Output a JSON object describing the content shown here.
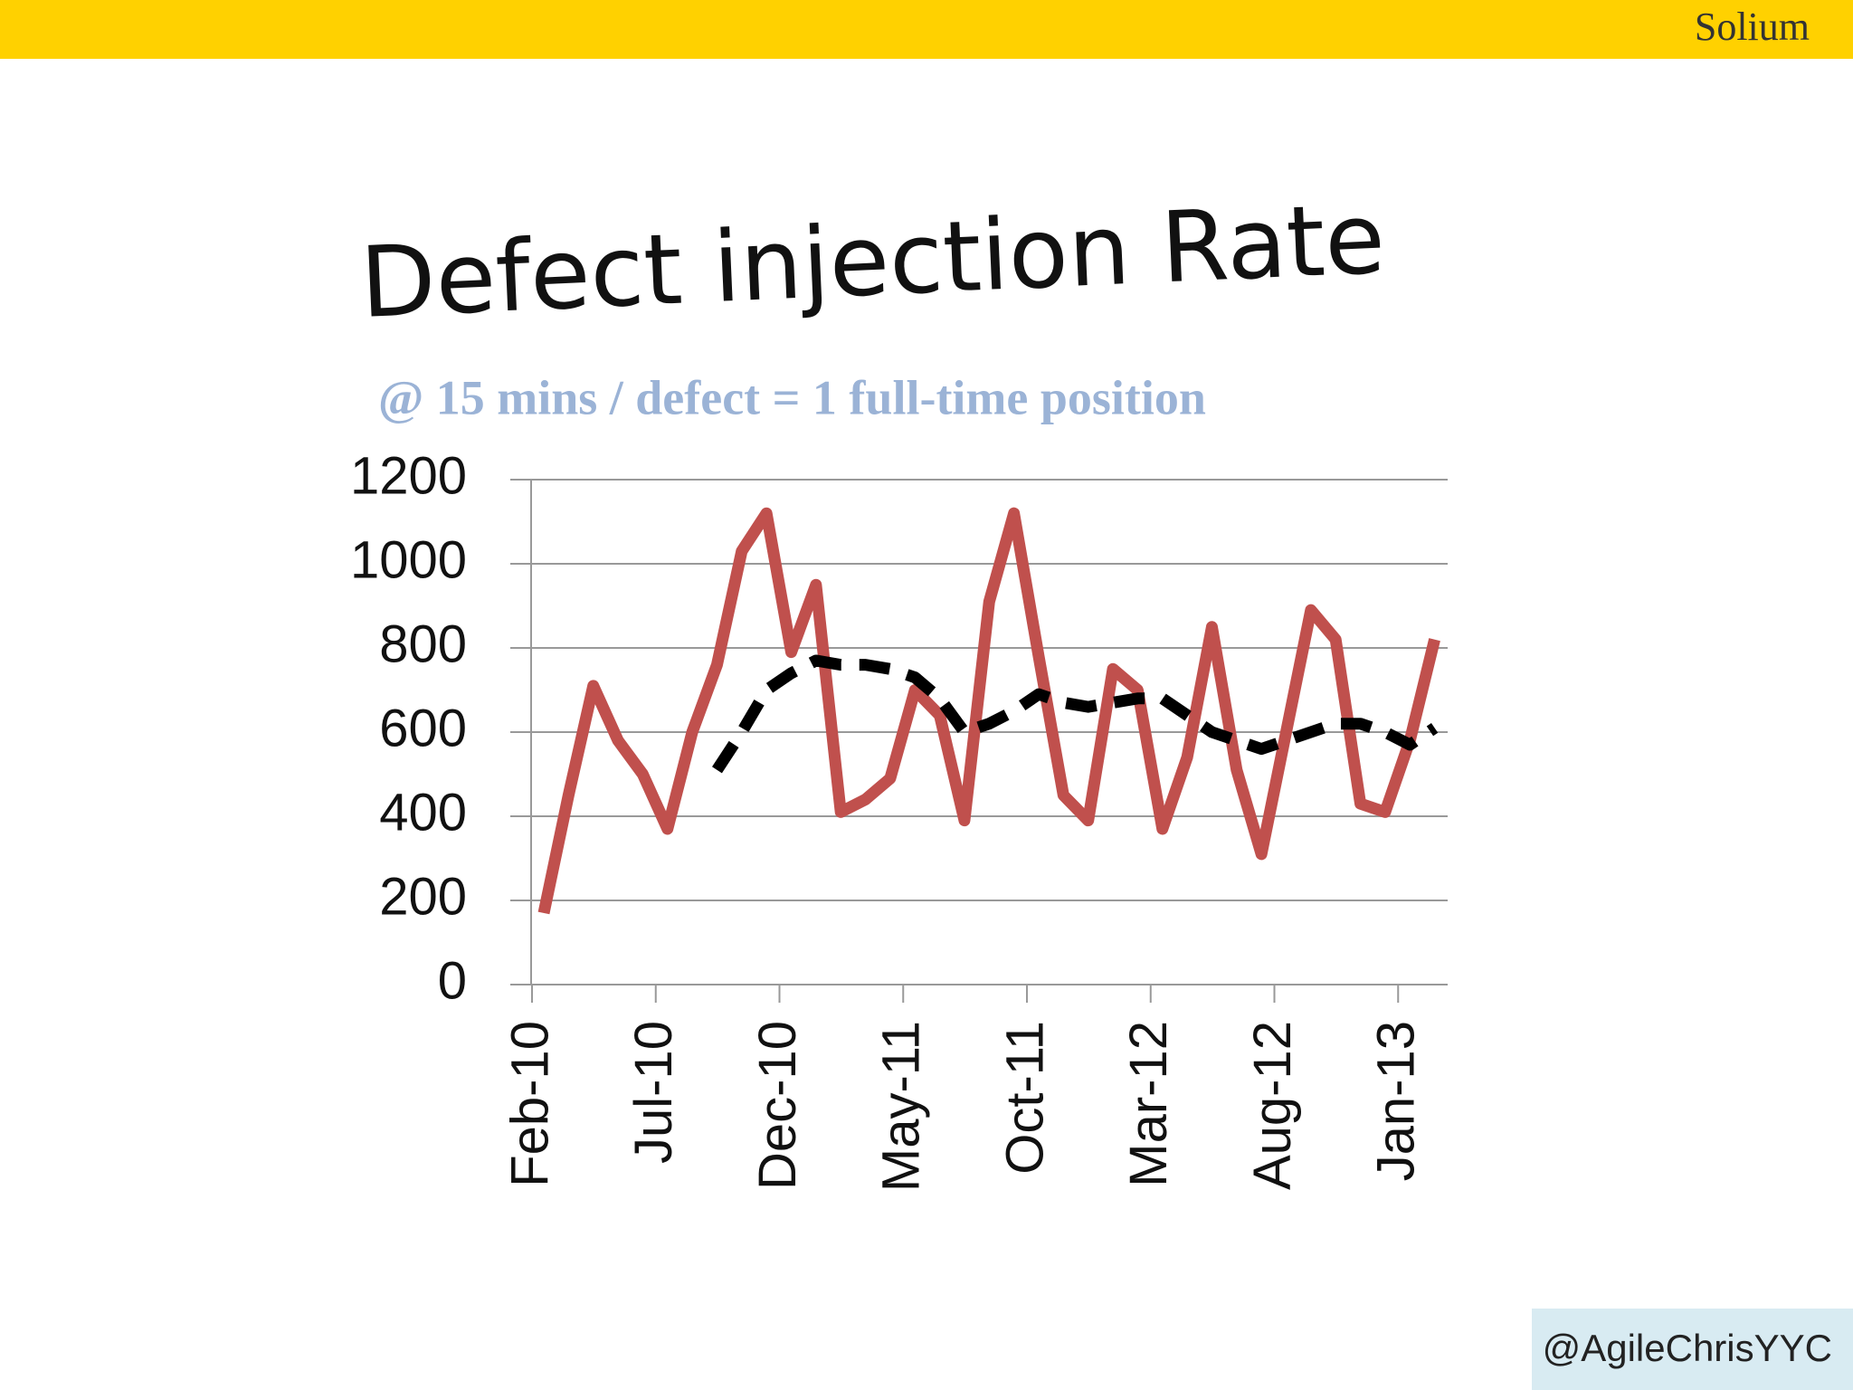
{
  "header": {
    "brand": "Solium"
  },
  "footer": {
    "handle": "@AgileChrisYYC"
  },
  "chart_data": {
    "type": "line",
    "title": "Defect injection Rate",
    "subtitle": "@ 15 mins / defect = 1 full-time position",
    "categories": [
      "Feb-10",
      null,
      null,
      null,
      null,
      "Jul-10",
      null,
      null,
      null,
      null,
      "Dec-10",
      null,
      null,
      null,
      null,
      "May-11",
      null,
      null,
      null,
      null,
      "Oct-11",
      null,
      null,
      null,
      null,
      "Mar-12",
      null,
      null,
      null,
      null,
      "Aug-12",
      null,
      null,
      null,
      null,
      "Jan-13",
      null
    ],
    "series": [
      {
        "color": "#c0504d",
        "values": [
          170,
          450,
          710,
          580,
          500,
          370,
          600,
          760,
          1030,
          1120,
          790,
          950,
          410,
          440,
          490,
          700,
          640,
          390,
          910,
          1120,
          780,
          450,
          390,
          750,
          700,
          370,
          540,
          850,
          510,
          310,
          600,
          890,
          820,
          430,
          410,
          580,
          820
        ]
      },
      {
        "color": "#000000",
        "dashed": true,
        "values": [
          null,
          null,
          null,
          null,
          null,
          null,
          null,
          510,
          600,
          700,
          740,
          770,
          760,
          760,
          750,
          730,
          680,
          600,
          620,
          650,
          690,
          670,
          660,
          670,
          680,
          680,
          640,
          600,
          580,
          560,
          580,
          600,
          620,
          620,
          600,
          570,
          610
        ]
      }
    ],
    "ylim": [
      0,
      1200
    ],
    "yticks": [
      0,
      200,
      400,
      600,
      800,
      1000,
      1200
    ],
    "grid": true
  }
}
